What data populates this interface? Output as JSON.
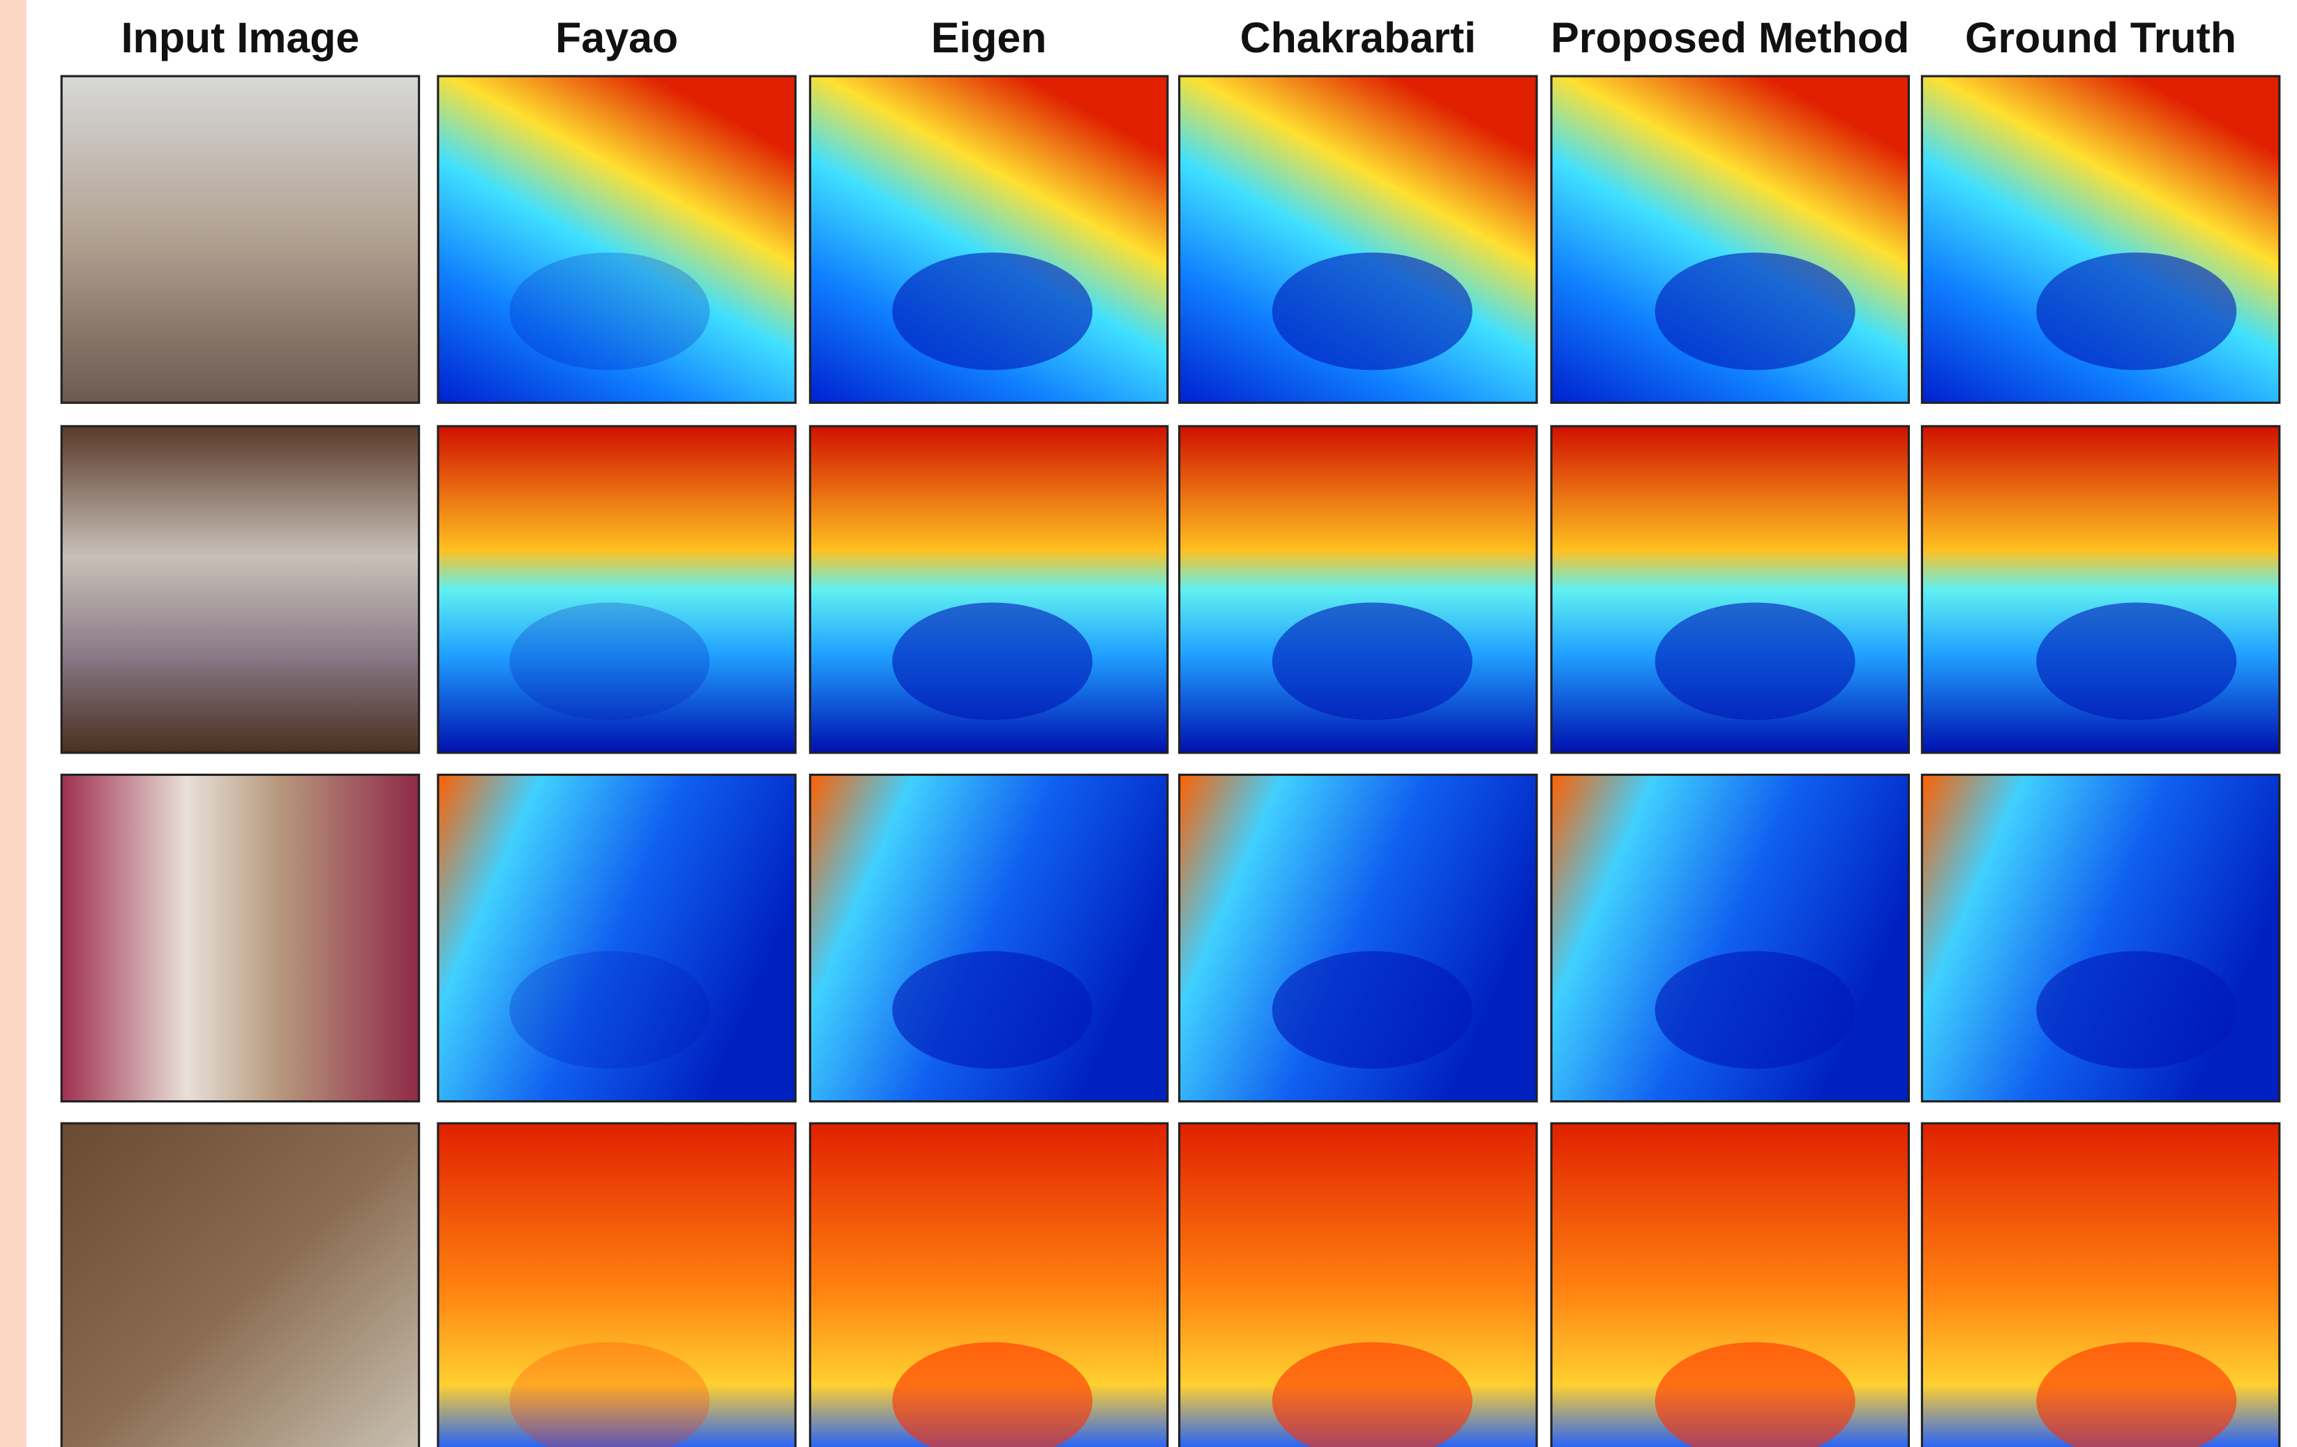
{
  "columns": [
    "Input Image",
    "Fayao",
    "Eigen",
    "Chakrabarti",
    "Proposed Method",
    "Ground Truth"
  ]
}
